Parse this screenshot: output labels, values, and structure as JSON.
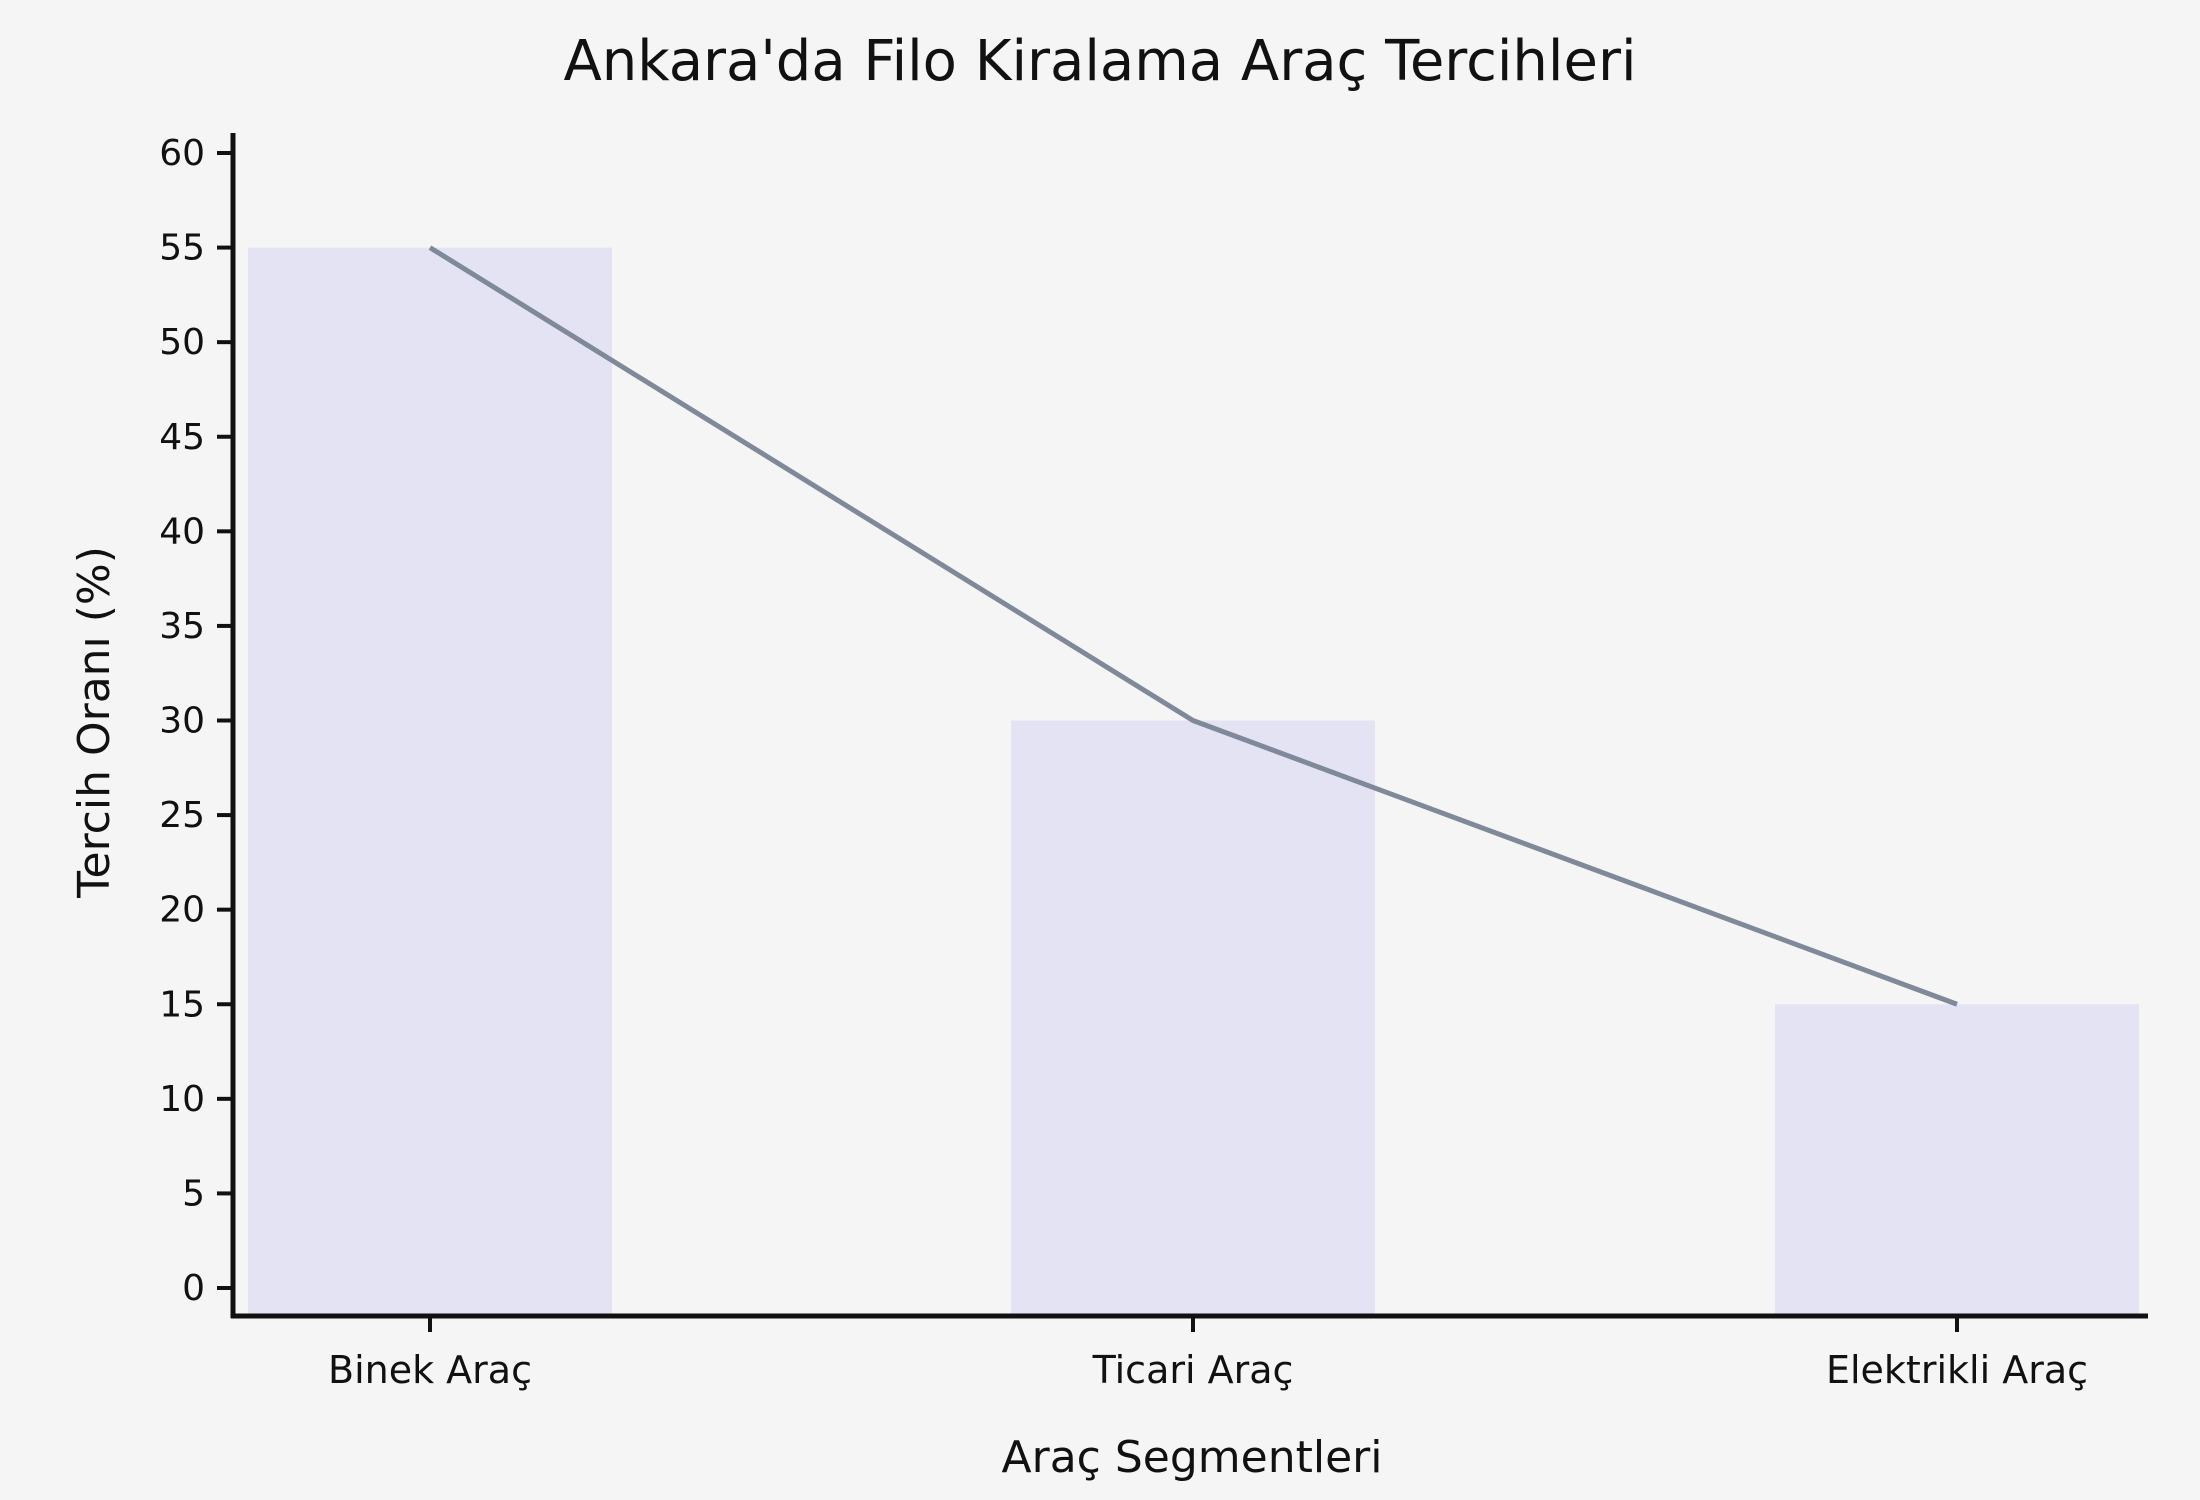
{
  "chart_data": {
    "type": "bar",
    "title": "Ankara'da Filo Kiralama Araç Tercihleri",
    "xlabel": "Araç Segmentleri",
    "ylabel": "Tercih Oranı (%)",
    "categories": [
      "Binek Araç",
      "Ticari Araç",
      "Elektrikli Araç"
    ],
    "series": [
      {
        "type": "bar",
        "values": [
          55,
          30,
          15
        ]
      },
      {
        "type": "line",
        "values": [
          55,
          30,
          15
        ]
      }
    ],
    "ylim": [
      0,
      60
    ],
    "yticks": [
      0,
      5,
      10,
      15,
      20,
      25,
      30,
      35,
      40,
      45,
      50,
      55,
      60
    ],
    "grid": false,
    "legend": "none"
  },
  "colors": {
    "background": "#f5f5f5",
    "bar_fill": "#e3e3f4",
    "line_stroke": "#7f8999",
    "axis": "#111111"
  }
}
